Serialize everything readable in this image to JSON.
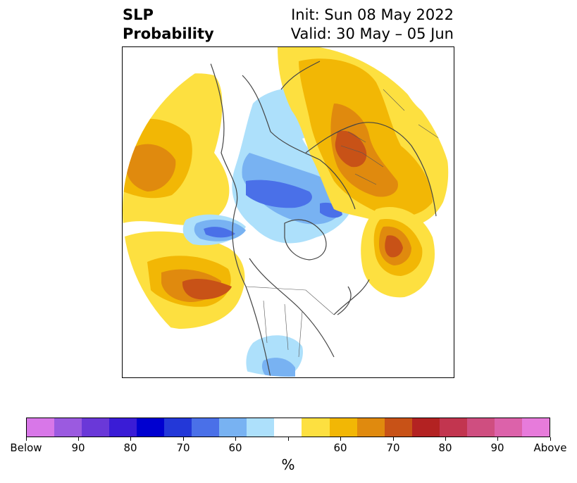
{
  "title": {
    "left_line1": "SLP",
    "left_line2": "Probability",
    "right_line1": "Init: Sun 08 May 2022",
    "right_line2": "Valid: 30 May – 05 Jun"
  },
  "colorbar": {
    "unit_label": "%",
    "colors": [
      "#d877e8",
      "#9b5ae0",
      "#6a38d8",
      "#3a1cd6",
      "#0000d0",
      "#2338d8",
      "#4a70e8",
      "#78b2f2",
      "#ade0fb",
      "#ffffff",
      "#fde040",
      "#f2b705",
      "#e08a0e",
      "#c85217",
      "#b32222",
      "#c2354f",
      "#cf4e80",
      "#dc62aa",
      "#e77bdb"
    ],
    "tick_labels": [
      "Below",
      "90",
      "80",
      "70",
      "60",
      "",
      "60",
      "70",
      "80",
      "90",
      "Above"
    ]
  },
  "map": {
    "description_layers": [
      {
        "category": "above",
        "level": "50-60"
      },
      {
        "category": "above",
        "level": "60-70"
      },
      {
        "category": "above",
        "level": "70-80"
      },
      {
        "category": "below",
        "level": "50-60"
      },
      {
        "category": "below",
        "level": "60-70"
      },
      {
        "category": "below",
        "level": "70-80"
      }
    ]
  }
}
